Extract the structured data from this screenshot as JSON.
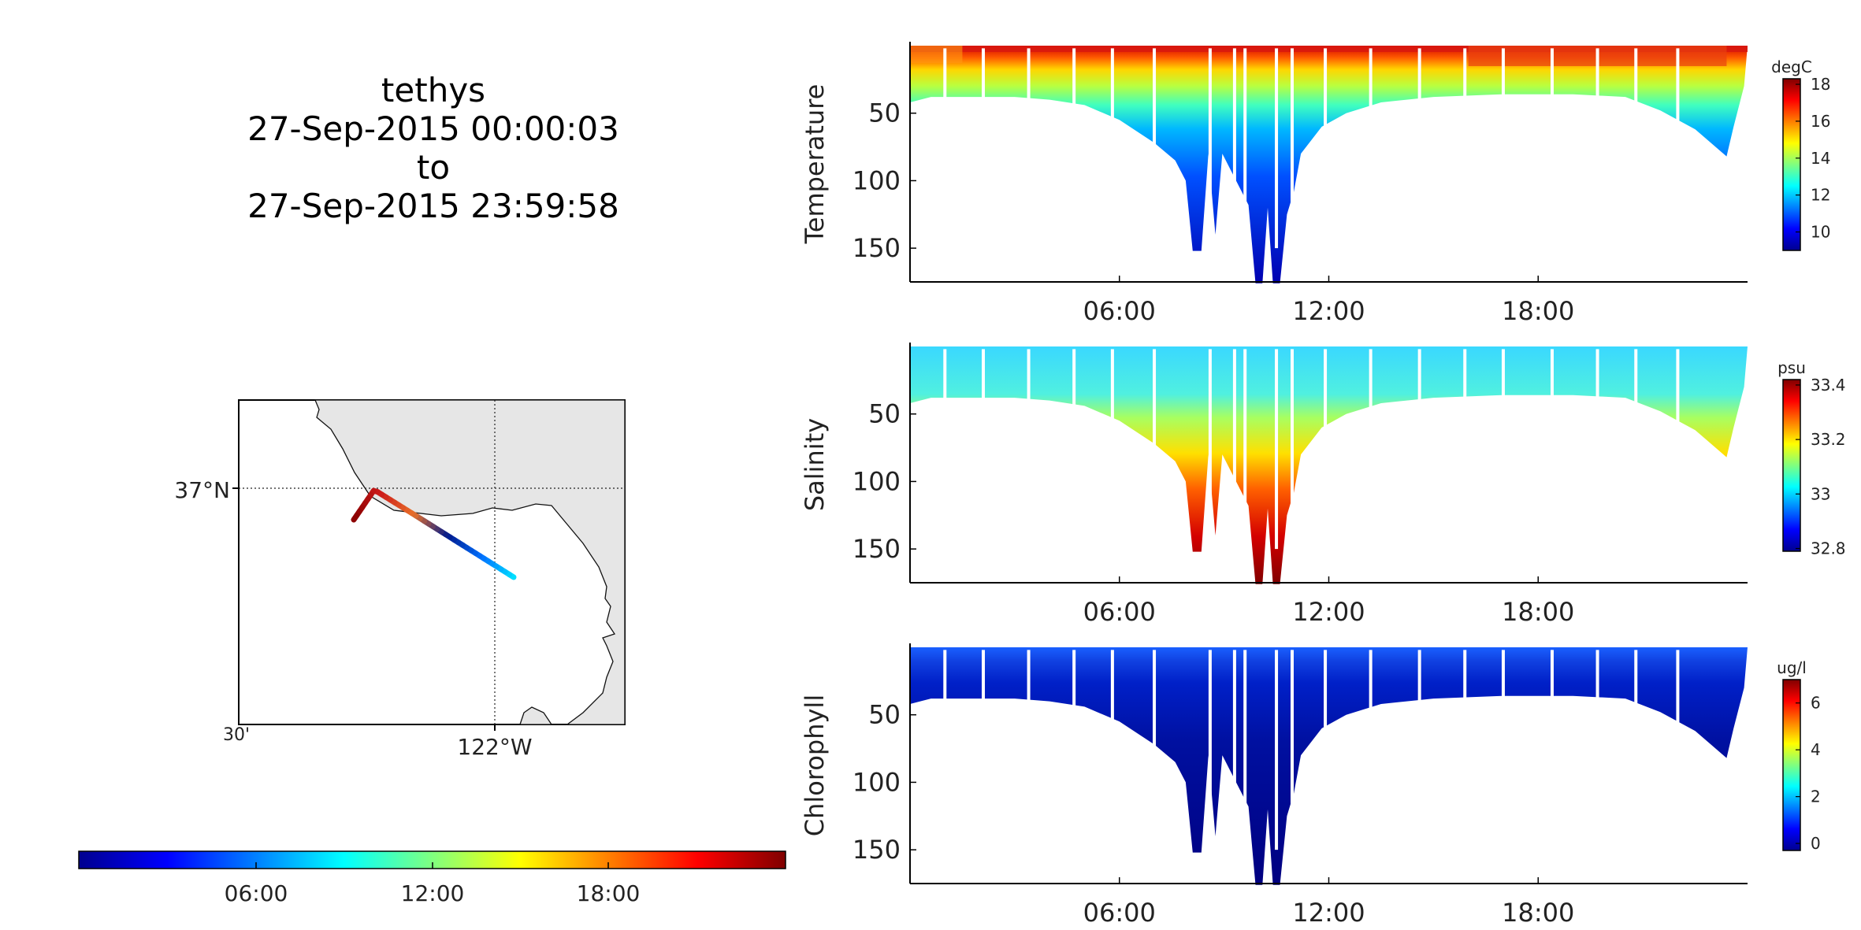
{
  "title": {
    "platform": "tethys",
    "start": "27-Sep-2015 00:00:03",
    "to": "to",
    "end": "27-Sep-2015 23:59:58"
  },
  "map": {
    "lat_label": "37°N",
    "lon_label": "122°W",
    "minute_label": "30'",
    "track_colors": [
      "#00e5ff",
      "#0070ff",
      "#001a8c",
      "#e8702a",
      "#cc1a1a",
      "#8a0000"
    ]
  },
  "time_colorbar": {
    "ticks": [
      "06:00",
      "12:00",
      "18:00"
    ],
    "colors": [
      "#00008f",
      "#0000ff",
      "#00ffff",
      "#ffff00",
      "#ff0000",
      "#800000"
    ]
  },
  "chart_data": [
    {
      "type": "scatter",
      "variable": "Temperature",
      "ylabel": "Temperature",
      "units": "degC",
      "y_ticks": [
        50,
        100,
        150
      ],
      "ylim": [
        175,
        0
      ],
      "x_ticks": [
        "06:00",
        "12:00",
        "18:00"
      ],
      "xlim_hours": [
        0,
        24
      ],
      "colorbar": {
        "ticks": [
          10,
          12,
          14,
          16,
          18
        ],
        "range": [
          9,
          18.3
        ]
      },
      "profiles": [
        {
          "time_h": 0.5,
          "max_depth": 38
        },
        {
          "time_h": 3.0,
          "max_depth": 38
        },
        {
          "time_h": 6.0,
          "max_depth": 50
        },
        {
          "time_h": 8.8,
          "max_depth": 152
        },
        {
          "time_h": 10.2,
          "max_depth": 175
        },
        {
          "time_h": 11.0,
          "max_depth": 108
        },
        {
          "time_h": 15.0,
          "max_depth": 36
        },
        {
          "time_h": 20.0,
          "max_depth": 40
        },
        {
          "time_h": 23.3,
          "max_depth": 78
        }
      ],
      "surface_value": 18,
      "deep_value": 9.5
    },
    {
      "type": "scatter",
      "variable": "Salinity",
      "ylabel": "Salinity",
      "units": "psu",
      "y_ticks": [
        50,
        100,
        150
      ],
      "ylim": [
        175,
        0
      ],
      "x_ticks": [
        "06:00",
        "12:00",
        "18:00"
      ],
      "xlim_hours": [
        0,
        24
      ],
      "colorbar": {
        "ticks": [
          32.8,
          33,
          33.2,
          33.4
        ],
        "range": [
          32.79,
          33.42
        ]
      },
      "surface_value": 33.0,
      "deep_value": 33.4
    },
    {
      "type": "scatter",
      "variable": "Chlorophyll",
      "ylabel": "Chlorophyll",
      "units": "ug/l",
      "y_ticks": [
        50,
        100,
        150
      ],
      "ylim": [
        175,
        0
      ],
      "x_ticks": [
        "06:00",
        "12:00",
        "18:00"
      ],
      "xlim_hours": [
        0,
        24
      ],
      "colorbar": {
        "ticks": [
          0,
          2,
          4,
          6
        ],
        "range": [
          -0.3,
          7.0
        ]
      },
      "surface_value": 2,
      "deep_value": 0
    }
  ]
}
